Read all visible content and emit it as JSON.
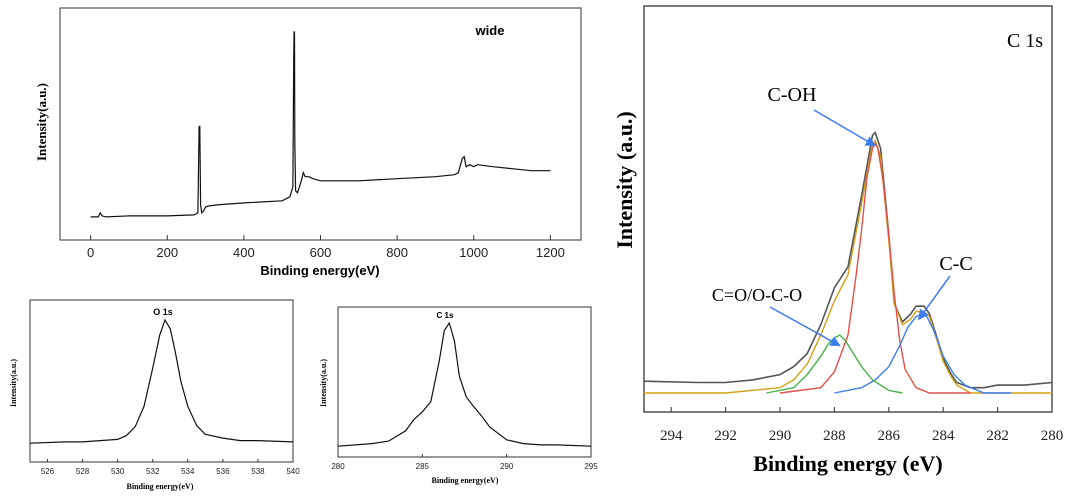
{
  "chart_data": [
    {
      "id": "wide",
      "type": "line",
      "title": "wide",
      "xlabel": "Binding energy(eV)",
      "ylabel": "Intensity(a.u.)",
      "xlim": [
        -80,
        1280
      ],
      "xticks": [
        0,
        200,
        400,
        600,
        800,
        1000,
        1200
      ],
      "ylim": [
        0,
        1
      ],
      "series": [
        {
          "x": [
            0,
            20,
            25,
            30,
            40,
            100,
            200,
            270,
            280,
            283,
            285,
            287,
            290,
            295,
            300,
            310,
            330,
            400,
            500,
            520,
            528,
            530,
            531,
            532,
            533,
            535,
            540,
            550,
            555,
            560,
            570,
            580,
            600,
            700,
            800,
            900,
            950,
            960,
            970,
            975,
            980,
            990,
            1000,
            1010,
            1050,
            1100,
            1150,
            1200
          ],
          "y": [
            0.07,
            0.07,
            0.09,
            0.075,
            0.07,
            0.075,
            0.075,
            0.08,
            0.09,
            0.52,
            0.52,
            0.13,
            0.09,
            0.1,
            0.12,
            0.125,
            0.13,
            0.14,
            0.15,
            0.17,
            0.22,
            0.85,
            0.99,
            0.99,
            0.45,
            0.2,
            0.19,
            0.25,
            0.29,
            0.27,
            0.27,
            0.26,
            0.25,
            0.25,
            0.26,
            0.27,
            0.28,
            0.29,
            0.36,
            0.37,
            0.32,
            0.33,
            0.32,
            0.33,
            0.32,
            0.31,
            0.3,
            0.3
          ]
        }
      ]
    },
    {
      "id": "o1s",
      "type": "line",
      "title": "O 1s",
      "xlabel": "Binding energy(eV)",
      "ylabel": "Intensity(a.u.)",
      "xlim": [
        525,
        540
      ],
      "xticks": [
        526,
        528,
        530,
        532,
        534,
        536,
        538,
        540
      ],
      "ylim": [
        0,
        1
      ],
      "series": [
        {
          "x": [
            525,
            527,
            528,
            529,
            530,
            530.5,
            531,
            531.5,
            532,
            532.4,
            532.7,
            533,
            533.3,
            533.6,
            534,
            534.5,
            535,
            536,
            537,
            538,
            540
          ],
          "y": [
            0.03,
            0.04,
            0.04,
            0.05,
            0.06,
            0.09,
            0.16,
            0.32,
            0.62,
            0.88,
            1.0,
            0.93,
            0.74,
            0.52,
            0.32,
            0.17,
            0.1,
            0.07,
            0.05,
            0.05,
            0.04
          ]
        }
      ]
    },
    {
      "id": "c1s-small",
      "type": "line",
      "title": "C 1s",
      "xlabel": "Binding energy(eV)",
      "ylabel": "Intensity(a.u.)",
      "xlim": [
        280,
        295
      ],
      "xticks": [
        280,
        285,
        290,
        295
      ],
      "ylim": [
        0,
        1
      ],
      "series": [
        {
          "x": [
            280,
            282,
            283,
            284,
            284.5,
            285,
            285.5,
            286,
            286.3,
            286.6,
            286.9,
            287.2,
            287.6,
            288,
            288.5,
            289,
            290,
            291,
            292,
            293,
            295
          ],
          "y": [
            0.03,
            0.05,
            0.07,
            0.15,
            0.24,
            0.3,
            0.38,
            0.7,
            0.94,
            1.0,
            0.86,
            0.58,
            0.42,
            0.35,
            0.27,
            0.18,
            0.08,
            0.05,
            0.04,
            0.04,
            0.03
          ]
        }
      ]
    },
    {
      "id": "c1s-fit",
      "type": "line",
      "title": "C 1s",
      "xlabel": "Binding energy (eV)",
      "ylabel": "Intensity (a.u.)",
      "xlim": [
        295,
        280
      ],
      "xticks": [
        294,
        292,
        290,
        288,
        286,
        284,
        282,
        280
      ],
      "ylim": [
        0,
        1
      ],
      "series": [
        {
          "color": "#555555",
          "x": [
            295,
            293,
            292,
            291,
            290,
            289.5,
            289,
            288.5,
            288,
            287.5,
            287,
            286.6,
            286.5,
            286.3,
            286,
            285.8,
            285.5,
            285.2,
            285,
            284.7,
            284.5,
            284.2,
            284,
            283.7,
            283.5,
            283,
            282.5,
            282,
            281,
            280
          ],
          "y": [
            0.045,
            0.04,
            0.04,
            0.05,
            0.07,
            0.1,
            0.15,
            0.26,
            0.4,
            0.48,
            0.75,
            0.98,
            0.99,
            0.93,
            0.6,
            0.34,
            0.27,
            0.3,
            0.33,
            0.33,
            0.3,
            0.2,
            0.13,
            0.07,
            0.04,
            0.02,
            0.02,
            0.03,
            0.03,
            0.04
          ]
        },
        {
          "color": "#d4a017",
          "x": [
            295,
            292,
            290,
            289.5,
            289,
            288.5,
            288,
            287.5,
            287,
            286.6,
            286.5,
            286.3,
            286,
            285.8,
            285.5,
            285.2,
            285,
            284.7,
            284.5,
            284.2,
            284,
            283.7,
            283.5,
            283,
            282,
            280
          ],
          "y": [
            0.0,
            0.0,
            0.02,
            0.05,
            0.11,
            0.22,
            0.35,
            0.45,
            0.72,
            0.95,
            0.96,
            0.9,
            0.58,
            0.34,
            0.26,
            0.28,
            0.31,
            0.31,
            0.29,
            0.19,
            0.12,
            0.06,
            0.03,
            0.0,
            0.0,
            0.0
          ]
        },
        {
          "color": "#e0514a",
          "x": [
            290,
            288.5,
            288,
            287.5,
            287.2,
            287,
            286.8,
            286.6,
            286.5,
            286.4,
            286.2,
            286,
            285.8,
            285.6,
            285.4,
            285,
            284.5,
            283
          ],
          "y": [
            0.0,
            0.02,
            0.08,
            0.22,
            0.45,
            0.62,
            0.82,
            0.93,
            0.95,
            0.93,
            0.8,
            0.6,
            0.38,
            0.2,
            0.09,
            0.02,
            0.0,
            0.0
          ]
        },
        {
          "color": "#3c7ef0",
          "x": [
            288,
            287,
            286.5,
            286,
            285.6,
            285.3,
            285,
            284.8,
            284.6,
            284.4,
            284.2,
            284,
            283.6,
            283.2,
            282.5,
            281.5
          ],
          "y": [
            0.0,
            0.02,
            0.05,
            0.1,
            0.18,
            0.25,
            0.29,
            0.3,
            0.29,
            0.25,
            0.2,
            0.14,
            0.07,
            0.03,
            0.0,
            0.0
          ]
        },
        {
          "color": "#47b34a",
          "x": [
            290.5,
            289.5,
            289,
            288.5,
            288.2,
            288,
            287.8,
            287.6,
            287.3,
            287,
            286.6,
            286,
            285.5
          ],
          "y": [
            0.0,
            0.02,
            0.07,
            0.14,
            0.19,
            0.21,
            0.22,
            0.2,
            0.15,
            0.1,
            0.05,
            0.01,
            0.0
          ]
        }
      ],
      "annotations": [
        {
          "label": "C-OH",
          "target_x": 286.5,
          "target_y": 0.94
        },
        {
          "label": "C=O/O-C-O",
          "target_x": 287.8,
          "target_y": 0.18
        },
        {
          "label": "C-C",
          "target_x": 284.9,
          "target_y": 0.28
        }
      ]
    }
  ]
}
